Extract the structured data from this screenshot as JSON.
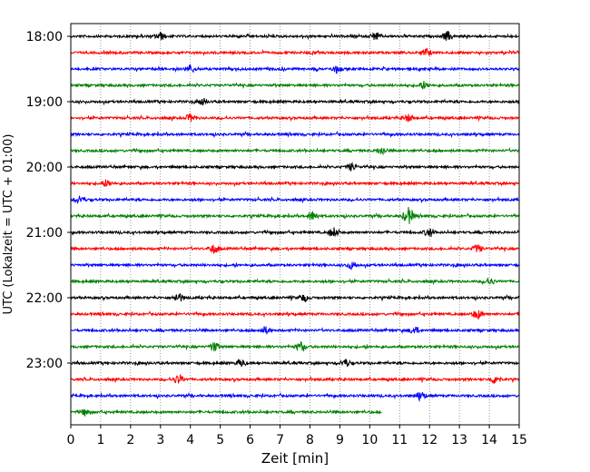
{
  "chart_data": {
    "type": "line",
    "subtype": "helicorder",
    "xlabel": "Zeit  [min]",
    "ylabel": "UTC (Lokalzeit = UTC + 01:00)",
    "xlim": [
      0,
      15
    ],
    "x_ticks": [
      0,
      1,
      2,
      3,
      4,
      5,
      6,
      7,
      8,
      9,
      10,
      11,
      12,
      13,
      14,
      15
    ],
    "x_grid": "dotted vertical lines at each minute",
    "y_tick_labels": [
      "18:00",
      "19:00",
      "20:00",
      "21:00",
      "22:00",
      "23:00"
    ],
    "y_tick_rows": [
      0,
      4,
      8,
      12,
      16,
      20
    ],
    "row_interval_min": 15,
    "rows_start": "18:00",
    "color_cycle": [
      "#000000",
      "#ff0000",
      "#0000ff",
      "#008000"
    ],
    "rows": [
      {
        "start": "18:00",
        "color": "#000000",
        "end_min": 15,
        "events": [
          {
            "x": 3.0,
            "amp": 4
          },
          {
            "x": 10.2,
            "amp": 4
          },
          {
            "x": 12.6,
            "amp": 5
          }
        ]
      },
      {
        "start": "18:15",
        "color": "#ff0000",
        "end_min": 15,
        "events": [
          {
            "x": 11.9,
            "amp": 4
          }
        ]
      },
      {
        "start": "18:30",
        "color": "#0000ff",
        "end_min": 15,
        "events": [
          {
            "x": 4.0,
            "amp": 4
          },
          {
            "x": 8.9,
            "amp": 4
          }
        ]
      },
      {
        "start": "18:45",
        "color": "#008000",
        "end_min": 15,
        "events": [
          {
            "x": 11.8,
            "amp": 4
          }
        ]
      },
      {
        "start": "19:00",
        "color": "#000000",
        "end_min": 15,
        "events": [
          {
            "x": 4.4,
            "amp": 4
          }
        ]
      },
      {
        "start": "19:15",
        "color": "#ff0000",
        "end_min": 15,
        "events": [
          {
            "x": 4.0,
            "amp": 4
          },
          {
            "x": 11.3,
            "amp": 4
          }
        ]
      },
      {
        "start": "19:30",
        "color": "#0000ff",
        "end_min": 15,
        "events": []
      },
      {
        "start": "19:45",
        "color": "#008000",
        "end_min": 15,
        "events": [
          {
            "x": 10.4,
            "amp": 4
          }
        ]
      },
      {
        "start": "20:00",
        "color": "#000000",
        "end_min": 15,
        "events": [
          {
            "x": 9.4,
            "amp": 4
          }
        ]
      },
      {
        "start": "20:15",
        "color": "#ff0000",
        "end_min": 15,
        "events": [
          {
            "x": 1.2,
            "amp": 4
          }
        ]
      },
      {
        "start": "20:30",
        "color": "#0000ff",
        "end_min": 15,
        "events": [
          {
            "x": 0.3,
            "amp": 4
          }
        ]
      },
      {
        "start": "20:45",
        "color": "#008000",
        "end_min": 15,
        "events": [
          {
            "x": 8.1,
            "amp": 5
          },
          {
            "x": 11.3,
            "amp": 9
          }
        ]
      },
      {
        "start": "21:00",
        "color": "#000000",
        "end_min": 15,
        "events": [
          {
            "x": 8.8,
            "amp": 5
          },
          {
            "x": 12.0,
            "amp": 5
          }
        ]
      },
      {
        "start": "21:15",
        "color": "#ff0000",
        "end_min": 15,
        "events": [
          {
            "x": 4.8,
            "amp": 5
          },
          {
            "x": 13.6,
            "amp": 4
          }
        ]
      },
      {
        "start": "21:30",
        "color": "#0000ff",
        "end_min": 15,
        "events": [
          {
            "x": 9.4,
            "amp": 4
          }
        ]
      },
      {
        "start": "21:45",
        "color": "#008000",
        "end_min": 15,
        "events": [
          {
            "x": 14.0,
            "amp": 4
          }
        ]
      },
      {
        "start": "22:00",
        "color": "#000000",
        "end_min": 15,
        "events": [
          {
            "x": 3.6,
            "amp": 5
          },
          {
            "x": 7.8,
            "amp": 4
          }
        ]
      },
      {
        "start": "22:15",
        "color": "#ff0000",
        "end_min": 15,
        "events": [
          {
            "x": 13.6,
            "amp": 5
          }
        ]
      },
      {
        "start": "22:30",
        "color": "#0000ff",
        "end_min": 15,
        "events": [
          {
            "x": 6.5,
            "amp": 4
          },
          {
            "x": 11.5,
            "amp": 4
          }
        ]
      },
      {
        "start": "22:45",
        "color": "#008000",
        "end_min": 15,
        "events": [
          {
            "x": 4.8,
            "amp": 5
          },
          {
            "x": 7.7,
            "amp": 5
          }
        ]
      },
      {
        "start": "23:00",
        "color": "#000000",
        "end_min": 15,
        "events": [
          {
            "x": 5.7,
            "amp": 4
          },
          {
            "x": 9.2,
            "amp": 4
          }
        ]
      },
      {
        "start": "23:15",
        "color": "#ff0000",
        "end_min": 15,
        "events": [
          {
            "x": 3.6,
            "amp": 5
          },
          {
            "x": 14.2,
            "amp": 5
          }
        ]
      },
      {
        "start": "23:30",
        "color": "#0000ff",
        "end_min": 15,
        "events": [
          {
            "x": 11.7,
            "amp": 5
          }
        ]
      },
      {
        "start": "23:45",
        "color": "#008000",
        "end_min": 10.4,
        "events": [
          {
            "x": 0.5,
            "amp": 4
          }
        ]
      }
    ]
  }
}
